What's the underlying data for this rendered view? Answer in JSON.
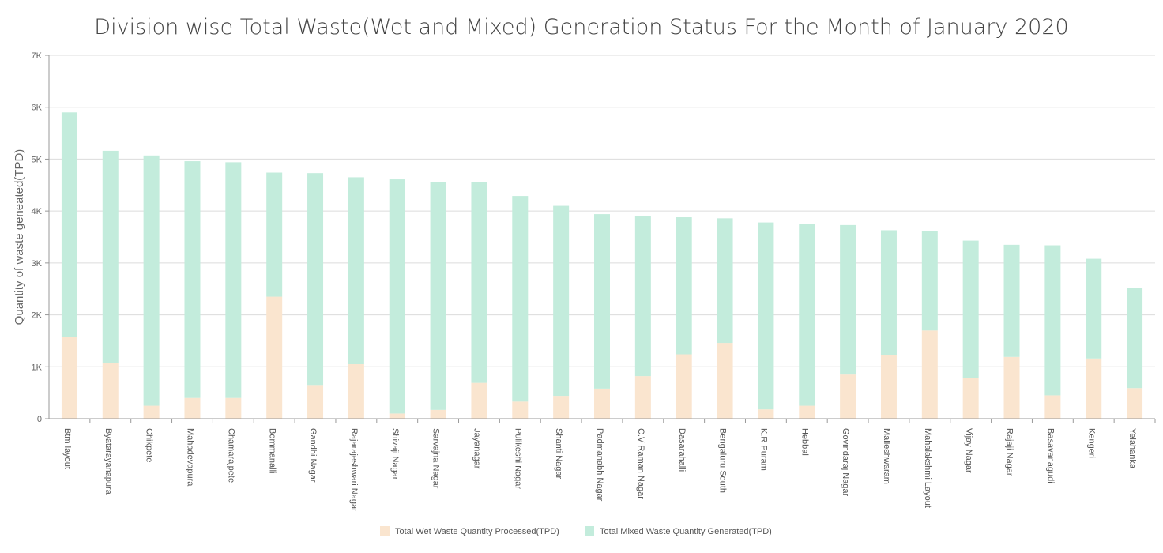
{
  "chart_data": {
    "type": "bar",
    "stacked": true,
    "title": "Division wise Total Waste(Wet and Mixed) Generation Status For the Month of January 2020",
    "xlabel": "",
    "ylabel": "Quantity of waste geneated(TPD)",
    "ylim": [
      0,
      7000
    ],
    "yticks": [
      0,
      1000,
      2000,
      3000,
      4000,
      5000,
      6000,
      7000
    ],
    "ytick_labels": [
      "0",
      "1K",
      "2K",
      "3K",
      "4K",
      "5K",
      "6K",
      "7K"
    ],
    "grid": true,
    "legend_position": "bottom",
    "categories": [
      "Btm layout",
      "Byatarayanapura",
      "Chikpete",
      "Mahadevapura",
      "Chamarajpete",
      "Bommanalli",
      "Gandhi Nagar",
      "Rajarajeshwari Nagar",
      "Shivaji Nagar",
      "Sarvajna Nagar",
      "Jayanagar",
      "Pulikeshi Nagar",
      "Shanti Nagar",
      "Padmanabh Nagar",
      "C.V Raman Nagar",
      "Dasarahalli",
      "Bengaluru South",
      "K.R Puram",
      "Hebbal",
      "Govindaraj Nagar",
      "Malleshwaram",
      "Mahalakshmi Layout",
      "Vijay Nagar",
      "Rajaji Nagar",
      "Basavanagudi",
      "Kengeri",
      "Yelahanka"
    ],
    "series": [
      {
        "name": "Total Wet Waste Quantity Processed(TPD)",
        "color": "#fae5cf",
        "values": [
          1580,
          1080,
          250,
          400,
          400,
          2350,
          650,
          1050,
          100,
          170,
          690,
          330,
          440,
          580,
          820,
          1240,
          1460,
          180,
          250,
          850,
          1220,
          1700,
          790,
          1190,
          450,
          1160,
          590
        ]
      },
      {
        "name": "Total Mixed Waste Quantity Generated(TPD)",
        "color": "#c3ecdc",
        "values": [
          4320,
          4080,
          4820,
          4560,
          4540,
          2390,
          4080,
          3600,
          4510,
          4380,
          3860,
          3960,
          3660,
          3360,
          3090,
          2640,
          2400,
          3600,
          3500,
          2880,
          2410,
          1920,
          2640,
          2160,
          2890,
          1920,
          1930
        ]
      }
    ]
  }
}
